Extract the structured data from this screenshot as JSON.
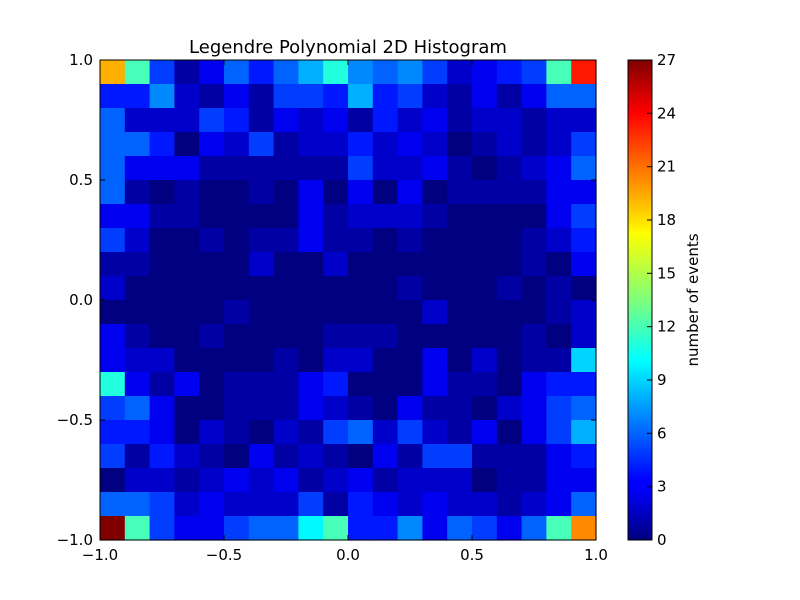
{
  "chart_data": {
    "type": "heatmap",
    "title": "Legendre Polynomial 2D Histogram",
    "xlabel": "",
    "ylabel": "",
    "colorbar_label": "number of events",
    "colormap": "jet",
    "xlim": [
      -1.0,
      1.0
    ],
    "ylim": [
      -1.0,
      1.0
    ],
    "clim": [
      0,
      27
    ],
    "bins": 20,
    "x_ticks": [
      -1.0,
      -0.5,
      0.0,
      0.5,
      1.0
    ],
    "x_tick_labels": [
      "−1.0",
      "−0.5",
      "0.0",
      "0.5",
      "1.0"
    ],
    "y_ticks": [
      -1.0,
      -0.5,
      0.0,
      0.5,
      1.0
    ],
    "y_tick_labels": [
      "−1.0",
      "−0.5",
      "0.0",
      "0.5",
      "1.0"
    ],
    "colorbar_ticks": [
      0,
      3,
      6,
      9,
      12,
      15,
      18,
      21,
      24,
      27
    ],
    "colorbar_tick_labels": [
      "0",
      "3",
      "6",
      "9",
      "12",
      "15",
      "18",
      "21",
      "24",
      "27"
    ],
    "grid": false,
    "counts_top_to_bottom": [
      [
        19,
        12,
        5,
        1,
        3,
        6,
        4,
        6,
        8,
        11,
        7,
        6,
        7,
        5,
        2,
        3,
        4,
        5,
        12,
        23
      ],
      [
        4,
        4,
        7,
        2,
        1,
        3,
        1,
        5,
        5,
        4,
        8,
        4,
        5,
        2,
        1,
        3,
        1,
        3,
        6,
        6
      ],
      [
        6,
        2,
        2,
        2,
        5,
        4,
        1,
        3,
        2,
        3,
        1,
        4,
        2,
        3,
        1,
        2,
        2,
        1,
        2,
        2
      ],
      [
        6,
        6,
        4,
        0,
        3,
        2,
        5,
        1,
        2,
        2,
        4,
        2,
        3,
        2,
        0,
        1,
        2,
        1,
        2,
        5
      ],
      [
        6,
        3,
        3,
        3,
        1,
        1,
        1,
        1,
        1,
        1,
        5,
        2,
        2,
        3,
        1,
        0,
        1,
        2,
        3,
        6
      ],
      [
        6,
        1,
        0,
        1,
        0,
        0,
        1,
        0,
        3,
        0,
        3,
        0,
        3,
        0,
        1,
        1,
        1,
        1,
        3,
        3
      ],
      [
        3,
        3,
        1,
        1,
        0,
        0,
        0,
        0,
        3,
        1,
        2,
        2,
        2,
        1,
        0,
        0,
        0,
        0,
        3,
        5
      ],
      [
        5,
        2,
        0,
        0,
        1,
        0,
        1,
        1,
        3,
        1,
        1,
        0,
        1,
        0,
        0,
        0,
        0,
        1,
        2,
        4
      ],
      [
        1,
        1,
        0,
        0,
        0,
        0,
        2,
        0,
        0,
        2,
        0,
        0,
        0,
        0,
        0,
        0,
        0,
        1,
        0,
        3
      ],
      [
        2,
        0,
        0,
        0,
        0,
        0,
        0,
        0,
        0,
        0,
        0,
        0,
        1,
        0,
        0,
        0,
        1,
        0,
        1,
        0
      ],
      [
        0,
        0,
        0,
        0,
        0,
        1,
        0,
        0,
        0,
        0,
        0,
        0,
        0,
        2,
        0,
        0,
        0,
        0,
        1,
        2
      ],
      [
        3,
        1,
        0,
        0,
        1,
        0,
        0,
        0,
        0,
        1,
        1,
        1,
        0,
        0,
        0,
        0,
        0,
        1,
        0,
        2
      ],
      [
        3,
        2,
        2,
        0,
        0,
        0,
        0,
        1,
        0,
        2,
        2,
        0,
        0,
        3,
        0,
        2,
        0,
        1,
        1,
        9
      ],
      [
        11,
        3,
        1,
        3,
        0,
        1,
        1,
        1,
        3,
        4,
        0,
        0,
        0,
        3,
        1,
        1,
        0,
        3,
        4,
        4
      ],
      [
        5,
        6,
        3,
        0,
        0,
        1,
        1,
        1,
        3,
        2,
        1,
        0,
        3,
        1,
        1,
        0,
        2,
        3,
        5,
        6
      ],
      [
        4,
        4,
        3,
        0,
        2,
        1,
        0,
        2,
        1,
        5,
        6,
        2,
        5,
        2,
        1,
        3,
        0,
        3,
        5,
        8
      ],
      [
        5,
        1,
        4,
        2,
        1,
        0,
        3,
        1,
        2,
        1,
        0,
        3,
        1,
        5,
        5,
        1,
        1,
        1,
        3,
        4
      ],
      [
        0,
        2,
        2,
        1,
        2,
        3,
        2,
        3,
        1,
        2,
        3,
        1,
        2,
        2,
        2,
        0,
        1,
        1,
        3,
        3
      ],
      [
        6,
        6,
        5,
        2,
        3,
        2,
        2,
        2,
        5,
        1,
        4,
        3,
        2,
        3,
        2,
        2,
        1,
        2,
        3,
        6
      ],
      [
        27,
        12,
        5,
        3,
        3,
        5,
        6,
        6,
        10,
        12,
        4,
        4,
        7,
        3,
        6,
        5,
        3,
        6,
        12,
        20
      ]
    ]
  }
}
